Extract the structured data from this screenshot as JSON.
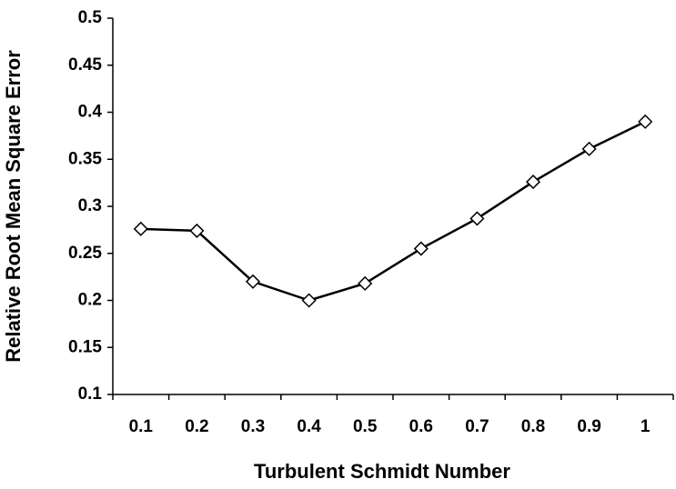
{
  "chart_data": {
    "type": "line",
    "x_label": "Turbulent Schmidt Number",
    "y_label": "Relative Root Mean Square Error",
    "categories": [
      "0.1",
      "0.2",
      "0.3",
      "0.4",
      "0.5",
      "0.6",
      "0.7",
      "0.8",
      "0.9",
      "1"
    ],
    "values": [
      0.276,
      0.274,
      0.22,
      0.2,
      0.218,
      0.255,
      0.287,
      0.326,
      0.361,
      0.39
    ],
    "color": "#000000",
    "marker": "diamond",
    "ylim": [
      0.1,
      0.5
    ],
    "yticks": [
      0.1,
      0.15,
      0.2,
      0.25,
      0.3,
      0.35,
      0.4,
      0.45,
      0.5
    ],
    "grid": false
  }
}
